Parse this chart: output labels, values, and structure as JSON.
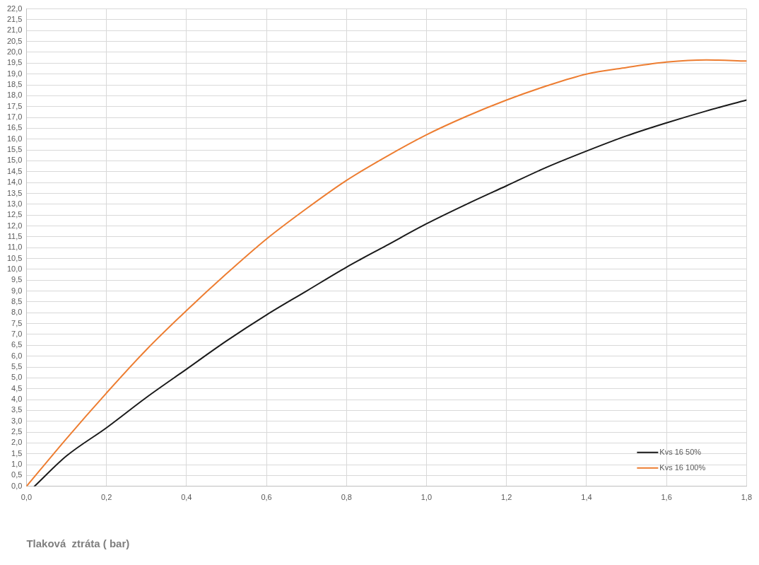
{
  "chart_data": {
    "type": "line",
    "xlabel": "Tlaková  ztráta ( bar)",
    "xlim": [
      0,
      1.8
    ],
    "ylim": [
      0,
      22
    ],
    "xticks": [
      {
        "value": 0,
        "label": "0,0"
      },
      {
        "value": 0.2,
        "label": "0,2"
      },
      {
        "value": 0.4,
        "label": "0,4"
      },
      {
        "value": 0.6,
        "label": "0,6"
      },
      {
        "value": 0.8,
        "label": "0,8"
      },
      {
        "value": 1.0,
        "label": "1,0"
      },
      {
        "value": 1.2,
        "label": "1,2"
      },
      {
        "value": 1.4,
        "label": "1,4"
      },
      {
        "value": 1.6,
        "label": "1,6"
      },
      {
        "value": 1.8,
        "label": "1,8"
      }
    ],
    "yticks": [
      {
        "value": 0,
        "label": "0,0"
      },
      {
        "value": 0.5,
        "label": "0,5"
      },
      {
        "value": 1,
        "label": "1,0"
      },
      {
        "value": 1.5,
        "label": "1,5"
      },
      {
        "value": 2,
        "label": "2,0"
      },
      {
        "value": 2.5,
        "label": "2,5"
      },
      {
        "value": 3,
        "label": "3,0"
      },
      {
        "value": 3.5,
        "label": "3,5"
      },
      {
        "value": 4,
        "label": "4,0"
      },
      {
        "value": 4.5,
        "label": "4,5"
      },
      {
        "value": 5,
        "label": "5,0"
      },
      {
        "value": 5.5,
        "label": "5,5"
      },
      {
        "value": 6,
        "label": "6,0"
      },
      {
        "value": 6.5,
        "label": "6,5"
      },
      {
        "value": 7,
        "label": "7,0"
      },
      {
        "value": 7.5,
        "label": "7,5"
      },
      {
        "value": 8,
        "label": "8,0"
      },
      {
        "value": 8.5,
        "label": "8,5"
      },
      {
        "value": 9,
        "label": "9,0"
      },
      {
        "value": 9.5,
        "label": "9,5"
      },
      {
        "value": 10,
        "label": "10,0"
      },
      {
        "value": 10.5,
        "label": "10,5"
      },
      {
        "value": 11,
        "label": "11,0"
      },
      {
        "value": 11.5,
        "label": "11,5"
      },
      {
        "value": 12,
        "label": "12,0"
      },
      {
        "value": 12.5,
        "label": "12,5"
      },
      {
        "value": 13,
        "label": "13,0"
      },
      {
        "value": 13.5,
        "label": "13,5"
      },
      {
        "value": 14,
        "label": "14,0"
      },
      {
        "value": 14.5,
        "label": "14,5"
      },
      {
        "value": 15,
        "label": "15,0"
      },
      {
        "value": 15.5,
        "label": "15,5"
      },
      {
        "value": 16,
        "label": "16,0"
      },
      {
        "value": 16.5,
        "label": "16,5"
      },
      {
        "value": 17,
        "label": "17,0"
      },
      {
        "value": 17.5,
        "label": "17,5"
      },
      {
        "value": 18,
        "label": "18,0"
      },
      {
        "value": 18.5,
        "label": "18,5"
      },
      {
        "value": 19,
        "label": "19,0"
      },
      {
        "value": 19.5,
        "label": "19,5"
      },
      {
        "value": 20,
        "label": "20,0"
      },
      {
        "value": 20.5,
        "label": "20,5"
      },
      {
        "value": 21,
        "label": "21,0"
      },
      {
        "value": 21.5,
        "label": "21,5"
      },
      {
        "value": 22,
        "label": "22,0"
      }
    ],
    "grid": true,
    "legend": "bottom right",
    "marker": "none",
    "line_style": "solid",
    "series": [
      {
        "name": "Kvs 16 50%",
        "color": "#1a1a1a",
        "x": [
          0.02,
          0.1,
          0.2,
          0.3,
          0.4,
          0.5,
          0.6,
          0.7,
          0.8,
          0.9,
          1.0,
          1.1,
          1.2,
          1.3,
          1.4,
          1.5,
          1.6,
          1.7,
          1.8
        ],
        "values": [
          0,
          1.4,
          2.7,
          4.1,
          5.4,
          6.7,
          7.9,
          9.0,
          10.1,
          11.1,
          12.1,
          13.0,
          13.85,
          14.7,
          15.45,
          16.15,
          16.75,
          17.3,
          17.8
        ]
      },
      {
        "name": "Kvs 16 100%",
        "color": "#ed7d31",
        "x": [
          0,
          0.1,
          0.2,
          0.3,
          0.4,
          0.5,
          0.6,
          0.7,
          0.8,
          0.9,
          1.0,
          1.1,
          1.2,
          1.3,
          1.4,
          1.5,
          1.6,
          1.7,
          1.8
        ],
        "values": [
          0,
          2.2,
          4.3,
          6.3,
          8.1,
          9.8,
          11.4,
          12.8,
          14.1,
          15.2,
          16.2,
          17.05,
          17.8,
          18.45,
          19.0,
          19.3,
          19.55,
          19.65,
          19.6
        ]
      }
    ]
  }
}
